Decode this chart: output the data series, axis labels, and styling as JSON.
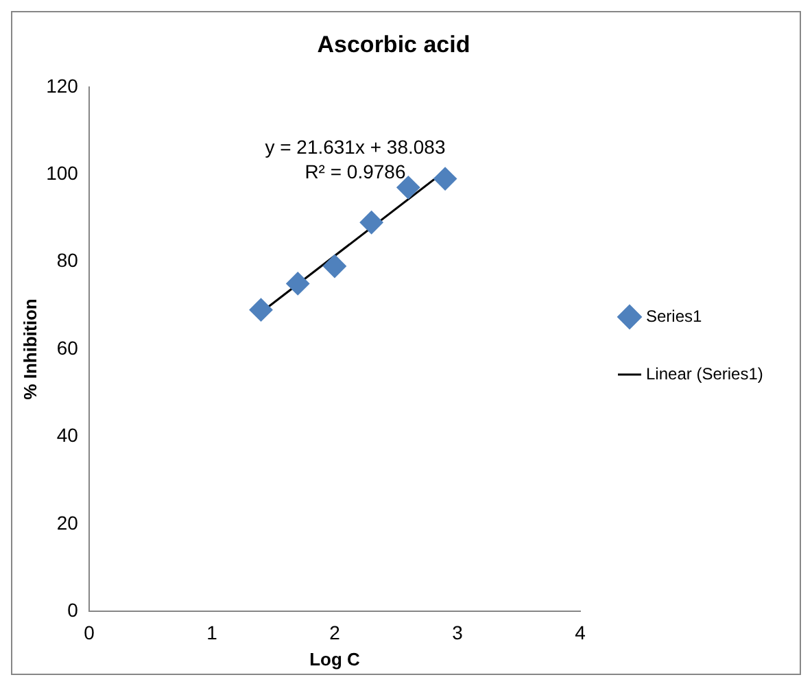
{
  "chart_data": {
    "type": "scatter",
    "title": "Ascorbic acid",
    "xlabel": "Log C",
    "ylabel": "% Inhibition",
    "xlim": [
      0,
      4
    ],
    "xticks": [
      0,
      1,
      2,
      3,
      4
    ],
    "ylim": [
      0,
      120
    ],
    "yticks": [
      0,
      20,
      40,
      60,
      80,
      100,
      120
    ],
    "grid": false,
    "legend": "right",
    "marker": "diamond",
    "annotations": [
      "y = 21.631x + 38.083",
      "R² = 0.9786"
    ],
    "series": [
      {
        "name": "Series1",
        "color": "#4f81bd",
        "x": [
          1.4,
          1.7,
          2.0,
          2.3,
          2.6,
          2.9
        ],
        "values": [
          69,
          75,
          79,
          89,
          97,
          99
        ]
      },
      {
        "name": "Linear (Series1)",
        "type": "line",
        "color": "#000000",
        "x": [
          1.4,
          2.9
        ],
        "values": [
          68.4,
          100.8
        ],
        "marker": "none",
        "line_style": "solid"
      }
    ]
  }
}
